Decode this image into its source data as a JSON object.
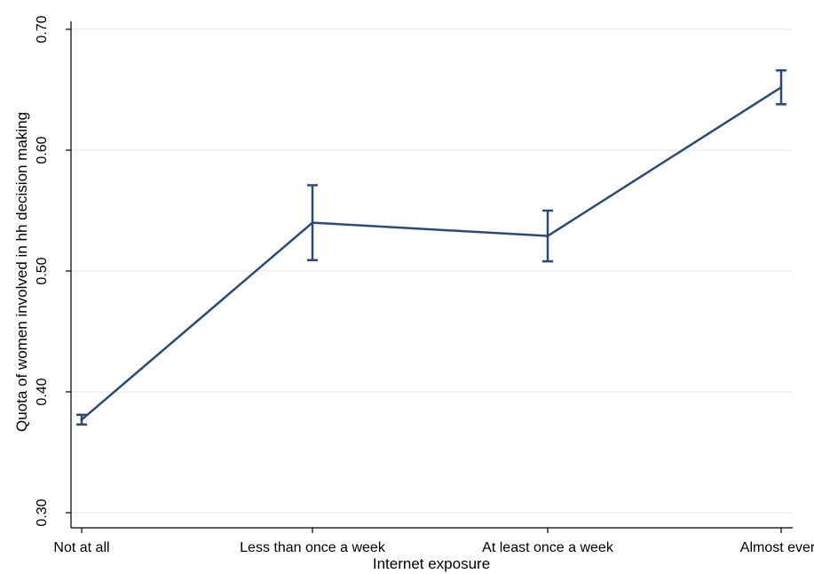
{
  "chart_data": {
    "type": "line",
    "title": "",
    "xlabel": "Internet exposure",
    "ylabel": "Quota of women involved in hh decision making",
    "categories": [
      "Not at all",
      "Less than once a week",
      "At least once a week",
      "Almost every"
    ],
    "series": [
      {
        "values": [
          0.377,
          0.54,
          0.529,
          0.652
        ],
        "ci_lower": [
          0.373,
          0.509,
          0.508,
          0.638
        ],
        "ci_upper": [
          0.381,
          0.571,
          0.55,
          0.666
        ]
      }
    ],
    "ylim": [
      0.3,
      0.7
    ],
    "yticks": [
      "0.30",
      "0.40",
      "0.50",
      "0.60",
      "0.70"
    ],
    "grid": true,
    "colors": {
      "line": "#2e4a6e",
      "grid": "#e6e6e6",
      "axis": "#000000"
    }
  }
}
